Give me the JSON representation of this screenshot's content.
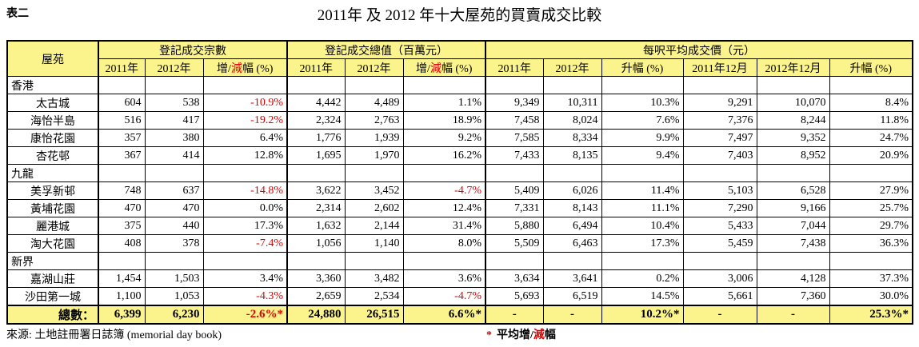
{
  "header": {
    "label": "表二",
    "title": "2011年 及 2012 年十大屋苑的買賣成交比較"
  },
  "table": {
    "estate_header": "屋苑",
    "groups": [
      {
        "title": "登記成交宗數",
        "subheaders": [
          [
            "2011年"
          ],
          [
            "2012年"
          ],
          [
            "增/",
            "減",
            "幅 (%)"
          ]
        ]
      },
      {
        "title": "登記成交總值（百萬元）",
        "subheaders": [
          [
            "2011年"
          ],
          [
            "2012年"
          ],
          [
            "增/",
            "減",
            "幅 (%)"
          ]
        ]
      },
      {
        "title": "每呎平均成交價（元）",
        "subheaders": [
          [
            "2011年"
          ],
          [
            "2012年"
          ],
          [
            "升幅 (%)"
          ],
          [
            "2011年12月"
          ],
          [
            "2012年12月"
          ],
          [
            "升幅 (%)"
          ]
        ]
      }
    ],
    "sections": [
      {
        "region": "香港",
        "rows": [
          [
            "太古城",
            "604",
            "538",
            "-10.9%",
            "4,442",
            "4,489",
            "1.1%",
            "9,349",
            "10,311",
            "10.3%",
            "9,291",
            "10,070",
            "8.4%"
          ],
          [
            "海怡半島",
            "516",
            "417",
            "-19.2%",
            "2,324",
            "2,763",
            "18.9%",
            "7,458",
            "8,024",
            "7.6%",
            "7,376",
            "8,244",
            "11.8%"
          ],
          [
            "康怡花園",
            "357",
            "380",
            "6.4%",
            "1,776",
            "1,939",
            "9.2%",
            "7,585",
            "8,334",
            "9.9%",
            "7,497",
            "9,352",
            "24.7%"
          ],
          [
            "杏花邨",
            "367",
            "414",
            "12.8%",
            "1,695",
            "1,970",
            "16.2%",
            "7,433",
            "8,135",
            "9.4%",
            "7,403",
            "8,952",
            "20.9%"
          ]
        ]
      },
      {
        "region": "九龍",
        "rows": [
          [
            "美孚新邨",
            "748",
            "637",
            "-14.8%",
            "3,622",
            "3,452",
            "-4.7%",
            "5,409",
            "6,026",
            "11.4%",
            "5,103",
            "6,528",
            "27.9%"
          ],
          [
            "黃埔花園",
            "470",
            "470",
            "0.0%",
            "2,314",
            "2,602",
            "12.4%",
            "7,331",
            "8,143",
            "11.1%",
            "7,290",
            "9,166",
            "25.7%"
          ],
          [
            "麗港城",
            "375",
            "440",
            "17.3%",
            "1,632",
            "2,144",
            "31.4%",
            "5,880",
            "6,494",
            "10.4%",
            "5,433",
            "7,044",
            "29.7%"
          ],
          [
            "淘大花園",
            "408",
            "378",
            "-7.4%",
            "1,056",
            "1,140",
            "8.0%",
            "5,509",
            "6,463",
            "17.3%",
            "5,459",
            "7,438",
            "36.3%"
          ]
        ]
      },
      {
        "region": "新界",
        "rows": [
          [
            "嘉湖山莊",
            "1,454",
            "1,503",
            "3.4%",
            "3,360",
            "3,482",
            "3.6%",
            "3,634",
            "3,641",
            "0.2%",
            "3,006",
            "4,128",
            "37.3%"
          ],
          [
            "沙田第一城",
            "1,100",
            "1,053",
            "-4.3%",
            "2,659",
            "2,534",
            "-4.7%",
            "5,693",
            "6,519",
            "14.5%",
            "5,661",
            "7,360",
            "30.0%"
          ]
        ]
      }
    ],
    "total": [
      "總數：",
      "6,399",
      "6,230",
      "-2.6%*",
      "24,880",
      "26,515",
      "6.6%*",
      "-",
      "-",
      "10.2%*",
      "-",
      "-",
      "25.3%*"
    ]
  },
  "footnote": {
    "source": "來源: 土地註冊署日誌簿 (memorial day book)",
    "note": [
      "*",
      "平均增/",
      "減",
      "幅"
    ]
  }
}
